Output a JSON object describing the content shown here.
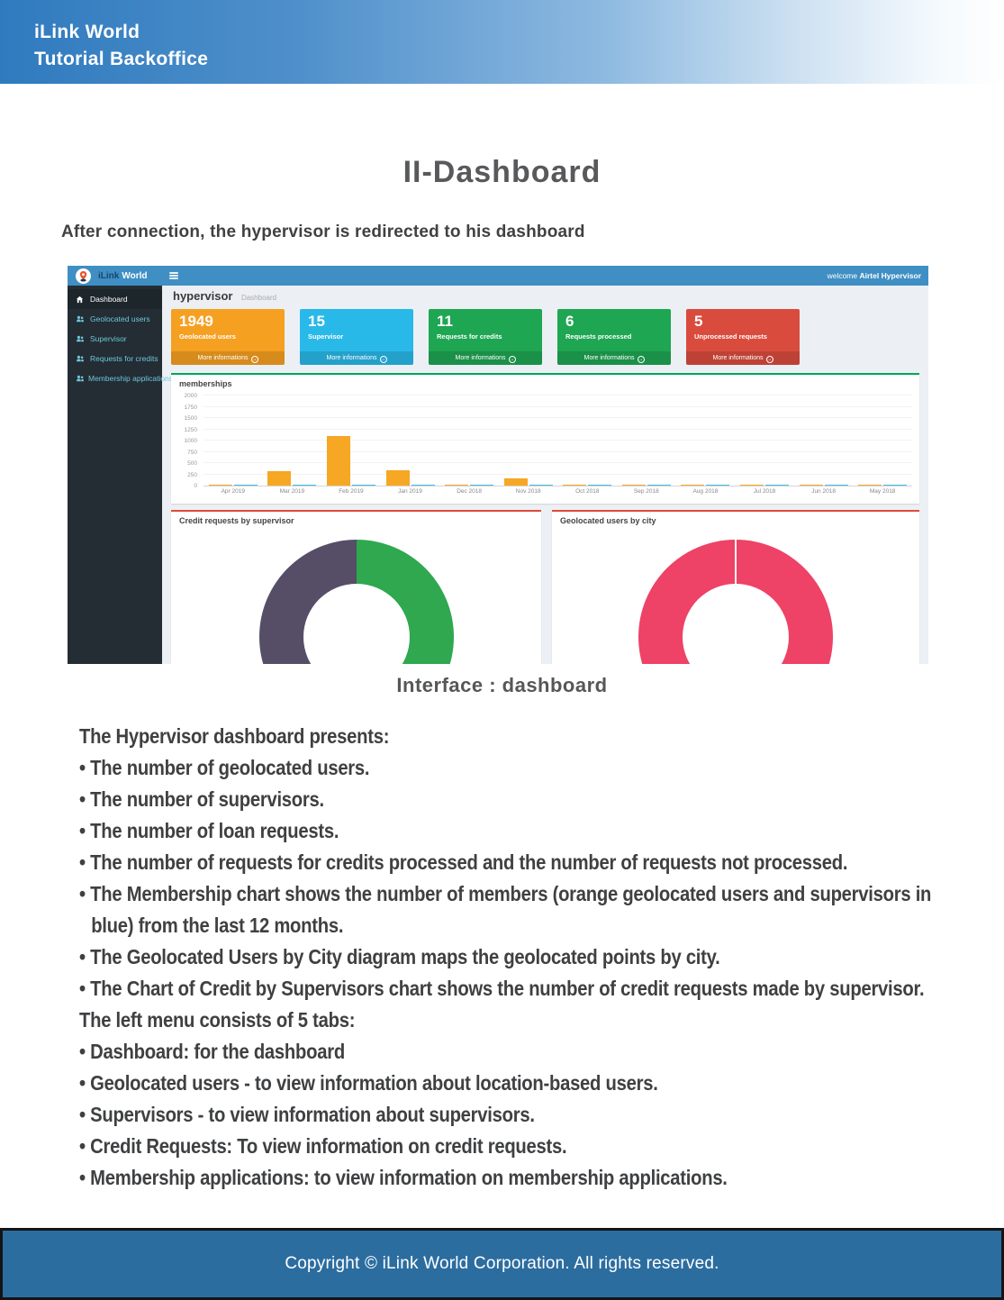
{
  "page": {
    "header": {
      "line1": "iLink World",
      "line2": "Tutorial Backoffice"
    },
    "title": "II-Dashboard",
    "subtitle": "After connection, the hypervisor is redirected to his dashboard",
    "caption": "Interface : dashboard",
    "body_lines": [
      "The Hypervisor dashboard presents:",
      "• The number of geolocated users.",
      "• The number of supervisors.",
      "• The number of loan requests.",
      "• The number of requests for credits processed and the number of requests not processed.",
      "• The Membership chart shows the number of members (orange geolocated users and supervisors in blue) from the last 12 months.",
      "• The Geolocated Users by City diagram maps the geolocated points by city.",
      "• The Chart of Credit by Supervisors chart shows the number of credit requests made by supervisor.",
      "The left menu consists of 5 tabs:",
      "• Dashboard: for the dashboard",
      "• Geolocated users - to view information about location-based users.",
      "• Supervisors - to view information about supervisors.",
      "• Credit Requests: To view information on credit requests.",
      "• Membership applications: to view information on membership applications."
    ],
    "footer": "Copyright © iLink World Corporation. All rights reserved."
  },
  "dashboard": {
    "brand": {
      "bold": "iLink",
      "light": "World"
    },
    "topbar": {
      "welcome_prefix": "welcome",
      "welcome_user": "Airtel Hypervisor"
    },
    "sidebar": {
      "items": [
        {
          "label": "Dashboard",
          "icon": "dashboard-icon",
          "active": true
        },
        {
          "label": "Geolocated users",
          "icon": "users-icon",
          "active": false
        },
        {
          "label": "Supervisor",
          "icon": "users-icon",
          "active": false
        },
        {
          "label": "Requests for credits",
          "icon": "users-icon",
          "active": false
        },
        {
          "label": "Membership applications",
          "icon": "users-icon",
          "active": false
        }
      ]
    },
    "heading": {
      "title": "hypervisor",
      "subtitle": "Dashboard"
    },
    "stat_cards": [
      {
        "value": "1949",
        "label": "Geolocated users",
        "color": "#f6a021",
        "footer_label": "More informations"
      },
      {
        "value": "15",
        "label": "Supervisor",
        "color": "#29b9e8",
        "footer_label": "More informations"
      },
      {
        "value": "11",
        "label": "Requests for credits",
        "color": "#1fa653",
        "footer_label": "More informations"
      },
      {
        "value": "6",
        "label": "Requests processed",
        "color": "#1fa653",
        "footer_label": "More informations"
      },
      {
        "value": "5",
        "label": "Unprocessed requests",
        "color": "#d94c3d",
        "footer_label": "More informations"
      }
    ]
  },
  "chart_data": [
    {
      "id": "memberships",
      "type": "bar",
      "title": "memberships",
      "categories": [
        "Apr 2019",
        "Mar 2019",
        "Feb 2019",
        "Jan 2019",
        "Dec 2018",
        "Nov 2018",
        "Oct 2018",
        "Sep 2018",
        "Aug 2018",
        "Jul 2018",
        "Jun 2018",
        "May 2018"
      ],
      "series": [
        {
          "name": "Geolocated users",
          "color": "#f6a723",
          "values": [
            15,
            330,
            1110,
            350,
            20,
            160,
            10,
            10,
            15,
            15,
            15,
            15
          ]
        },
        {
          "name": "Supervisors",
          "color": "#45b9e8",
          "values": [
            10,
            10,
            10,
            25,
            10,
            10,
            10,
            10,
            10,
            10,
            10,
            10
          ]
        }
      ],
      "ylim": [
        0,
        2000
      ],
      "yticks": [
        0,
        250,
        500,
        750,
        1000,
        1250,
        1500,
        1750,
        2000
      ],
      "grid": true,
      "accent_border": "#00a65a"
    },
    {
      "id": "credit_requests_by_supervisor",
      "type": "pie",
      "title": "Credit requests by supervisor",
      "slices": [
        {
          "label": "supervisor-green",
          "value": 49.5,
          "color": "#2fa84f"
        },
        {
          "label": "supervisor-dark",
          "value": 1,
          "color": "#2c3b55"
        },
        {
          "label": "supervisor-purple",
          "value": 49.5,
          "color": "#554e66"
        }
      ],
      "accent_border": "#dd4b39",
      "legend_position": "none"
    },
    {
      "id": "geolocated_users_by_city",
      "type": "pie",
      "title": "Geolocated users by city",
      "slices": [
        {
          "label": "city-1",
          "value": 50,
          "color": "#ee4266"
        },
        {
          "label": "city-2",
          "value": 50,
          "color": "#ee4266"
        }
      ],
      "accent_border": "#dd4b39",
      "legend_position": "none"
    }
  ]
}
